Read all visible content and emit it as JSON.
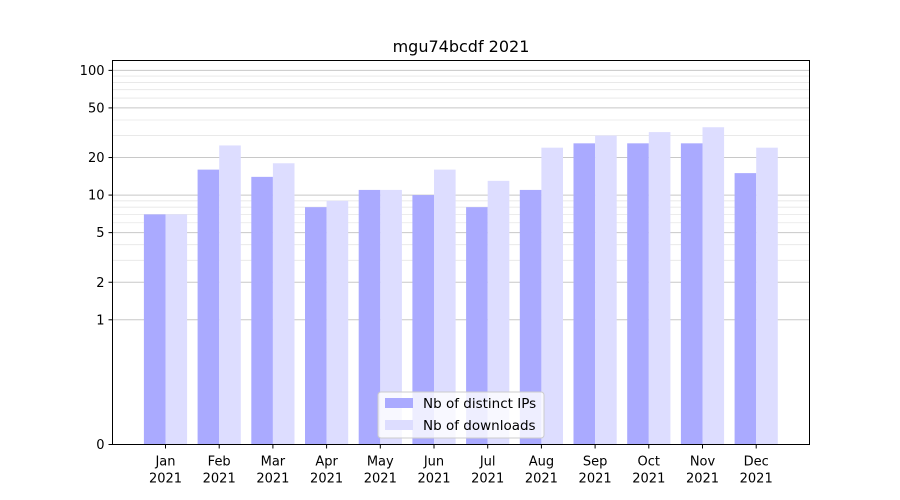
{
  "chart_data": {
    "type": "bar",
    "title": "mgu74bcdf 2021",
    "xlabel": "",
    "ylabel": "",
    "scale": "symlog",
    "ylim": [
      0,
      120
    ],
    "yticks": [
      0,
      1,
      2,
      5,
      10,
      20,
      50,
      100
    ],
    "ytick_labels": [
      "0",
      "1",
      "2",
      "5",
      "10",
      "20",
      "50",
      "100"
    ],
    "categories": [
      "Jan",
      "Feb",
      "Mar",
      "Apr",
      "May",
      "Jun",
      "Jul",
      "Aug",
      "Sep",
      "Oct",
      "Nov",
      "Dec"
    ],
    "category_year": "2021",
    "series": [
      {
        "name": "Nb of distinct IPs",
        "color": "#aaaaff",
        "values": [
          7,
          16,
          14,
          8,
          11,
          10,
          8,
          11,
          26,
          26,
          26,
          15
        ]
      },
      {
        "name": "Nb of downloads",
        "color": "#ddddff",
        "values": [
          7,
          25,
          18,
          9,
          11,
          16,
          13,
          24,
          30,
          32,
          35,
          24
        ]
      }
    ],
    "grid": true,
    "legend_position": "lower-center"
  }
}
